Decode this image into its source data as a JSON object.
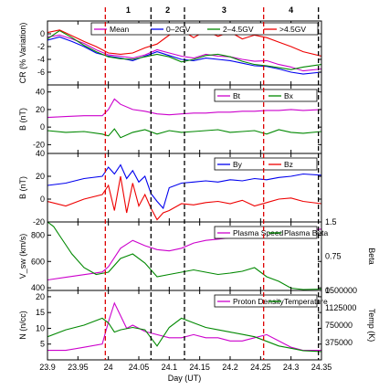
{
  "chart_data": {
    "type": "line",
    "xlabel": "Day (UT)",
    "xlim": [
      23.9,
      24.35
    ],
    "xticks": [
      "23.9",
      "23.95",
      "24",
      "24.05",
      "24.1",
      "24.15",
      "24.2",
      "24.25",
      "24.3",
      "24.35"
    ],
    "regions": [
      {
        "label": "1",
        "from": 23.995,
        "to": 24.07
      },
      {
        "label": "2",
        "from": 24.07,
        "to": 24.125
      },
      {
        "label": "3",
        "from": 24.125,
        "to": 24.255
      },
      {
        "label": "4",
        "from": 24.255,
        "to": 24.345
      }
    ],
    "markers": [
      {
        "x": 23.995,
        "color": "#dd0000"
      },
      {
        "x": 24.07,
        "color": "#000000"
      },
      {
        "x": 24.125,
        "color": "#000000"
      },
      {
        "x": 24.255,
        "color": "#dd0000"
      },
      {
        "x": 24.345,
        "color": "#000000"
      }
    ],
    "panels": [
      {
        "id": "cr",
        "ylabel": "CR (% Variation)",
        "ylim": [
          -8,
          2
        ],
        "yticks": [
          0,
          -2,
          -4,
          -6
        ],
        "legend": [
          "Mean",
          "0–2GV",
          "2–4.5GV",
          ">4.5GV"
        ],
        "series": [
          {
            "name": "Mean",
            "color": "#cc00cc",
            "x": [
              23.9,
              23.92,
              23.94,
              23.96,
              23.98,
              24.0,
              24.02,
              24.04,
              24.06,
              24.08,
              24.1,
              24.12,
              24.14,
              24.16,
              24.18,
              24.2,
              24.22,
              24.24,
              24.26,
              24.28,
              24.3,
              24.32,
              24.35
            ],
            "y": [
              -0.5,
              -0.2,
              -0.8,
              -1.5,
              -2.5,
              -3.3,
              -3.5,
              -3.8,
              -3.3,
              -2.5,
              -3.0,
              -3.5,
              -3.8,
              -3.2,
              -3.5,
              -3.6,
              -4.0,
              -4.3,
              -4.2,
              -4.8,
              -5.2,
              -5.8,
              -5.5
            ]
          },
          {
            "name": "0–2GV",
            "color": "#0000ee",
            "x": [
              23.9,
              23.92,
              23.94,
              23.96,
              23.98,
              24.0,
              24.02,
              24.04,
              24.06,
              24.08,
              24.1,
              24.12,
              24.14,
              24.16,
              24.18,
              24.2,
              24.22,
              24.24,
              24.26,
              24.28,
              24.3,
              24.32,
              24.35
            ],
            "y": [
              -1.0,
              -0.5,
              -1.2,
              -2.0,
              -3.0,
              -3.5,
              -3.8,
              -4.2,
              -3.5,
              -2.8,
              -3.4,
              -4.0,
              -4.2,
              -3.8,
              -4.0,
              -4.2,
              -4.6,
              -5.0,
              -5.1,
              -5.5,
              -6.0,
              -6.3,
              -6.0
            ]
          },
          {
            "name": "2–4.5GV",
            "color": "#008800",
            "x": [
              23.9,
              23.92,
              23.94,
              23.96,
              23.98,
              24.0,
              24.02,
              24.04,
              24.06,
              24.08,
              24.1,
              24.12,
              24.14,
              24.16,
              24.18,
              24.2,
              24.22,
              24.24,
              24.26,
              24.28,
              24.3,
              24.32,
              24.35
            ],
            "y": [
              -0.8,
              0.5,
              -0.6,
              -1.8,
              -2.8,
              -3.6,
              -3.9,
              -4.0,
              -3.6,
              -3.2,
              -3.6,
              -4.4,
              -4.0,
              -3.4,
              -3.2,
              -3.6,
              -4.3,
              -4.8,
              -5.0,
              -5.3,
              -5.6,
              -5.2,
              -4.8
            ]
          },
          {
            "name": ">4.5GV",
            "color": "#ee0000",
            "x": [
              23.9,
              23.92,
              23.94,
              23.96,
              23.98,
              24.0,
              24.02,
              24.04,
              24.06,
              24.08,
              24.1,
              24.12,
              24.14,
              24.16,
              24.18,
              24.2,
              24.22,
              24.24,
              24.26,
              24.28,
              24.3,
              24.32,
              24.35
            ],
            "y": [
              0.2,
              0.6,
              -0.3,
              -1.2,
              -2.0,
              -3.0,
              -3.2,
              -3.0,
              -2.2,
              -1.6,
              -0.2,
              0.6,
              -0.6,
              0.5,
              -0.4,
              0.3,
              -0.8,
              -0.2,
              -0.6,
              -1.3,
              -2.0,
              -2.8,
              -3.5
            ]
          }
        ]
      },
      {
        "id": "b",
        "ylabel": "B (nT)",
        "ylim": [
          -30,
          48
        ],
        "yticks": [
          40,
          20,
          0,
          -20
        ],
        "legend": [
          "Bt",
          "Bx"
        ],
        "series": [
          {
            "name": "Bt",
            "color": "#cc00cc",
            "x": [
              23.9,
              23.93,
              23.96,
              23.99,
              24.0,
              24.01,
              24.02,
              24.04,
              24.06,
              24.08,
              24.1,
              24.12,
              24.14,
              24.16,
              24.18,
              24.2,
              24.22,
              24.24,
              24.26,
              24.28,
              24.3,
              24.32,
              24.35
            ],
            "y": [
              11,
              12,
              13,
              13,
              20,
              32,
              26,
              20,
              18,
              15,
              14,
              15,
              16,
              16,
              17,
              17,
              18,
              18,
              19,
              19,
              20,
              19,
              20
            ]
          },
          {
            "name": "Bx",
            "color": "#008800",
            "x": [
              23.9,
              23.93,
              23.96,
              23.99,
              24.0,
              24.01,
              24.02,
              24.04,
              24.06,
              24.08,
              24.1,
              24.12,
              24.14,
              24.16,
              24.18,
              24.2,
              24.22,
              24.24,
              24.26,
              24.28,
              24.3,
              24.32,
              24.35
            ],
            "y": [
              -4,
              -6,
              -5,
              -8,
              -10,
              -2,
              -12,
              -6,
              -3,
              -8,
              -4,
              -6,
              -5,
              -4,
              -3,
              -6,
              -5,
              -4,
              -8,
              -3,
              -6,
              -7,
              -5
            ]
          }
        ]
      },
      {
        "id": "by",
        "ylabel": "B (nT)",
        "ylim": [
          -20,
          40
        ],
        "yticks": [
          40,
          20,
          0,
          -20
        ],
        "legend": [
          "By",
          "Bz"
        ],
        "series": [
          {
            "name": "By",
            "color": "#0000ee",
            "x": [
              23.9,
              23.93,
              23.96,
              23.99,
              24.0,
              24.01,
              24.02,
              24.03,
              24.04,
              24.05,
              24.06,
              24.07,
              24.08,
              24.09,
              24.1,
              24.12,
              24.14,
              24.16,
              24.18,
              24.2,
              24.22,
              24.24,
              24.26,
              24.28,
              24.3,
              24.32,
              24.35
            ],
            "y": [
              12,
              14,
              18,
              20,
              28,
              22,
              30,
              18,
              25,
              15,
              20,
              5,
              -2,
              -8,
              10,
              14,
              15,
              16,
              15,
              17,
              16,
              18,
              17,
              19,
              20,
              22,
              21
            ]
          },
          {
            "name": "Bz",
            "color": "#ee0000",
            "x": [
              23.9,
              23.93,
              23.96,
              23.99,
              24.0,
              24.01,
              24.02,
              24.03,
              24.04,
              24.05,
              24.06,
              24.07,
              24.08,
              24.09,
              24.1,
              24.12,
              24.14,
              24.16,
              24.18,
              24.2,
              24.22,
              24.24,
              24.26,
              24.28,
              24.3,
              24.32,
              24.35
            ],
            "y": [
              -2,
              -6,
              0,
              4,
              12,
              -10,
              20,
              -12,
              14,
              -6,
              4,
              -8,
              -18,
              -12,
              -10,
              -4,
              -5,
              -3,
              -2,
              -4,
              -1,
              -6,
              -3,
              0,
              1,
              -2,
              -4
            ]
          }
        ]
      },
      {
        "id": "vsw",
        "ylabel": "V_sw (km/s)",
        "ylim": [
          380,
          900
        ],
        "yticks": [
          800,
          600,
          400
        ],
        "right_ylabel": "Beta",
        "right_ylim": [
          0,
          1.5
        ],
        "right_yticks": [
          "1.5",
          "0.75",
          "0"
        ],
        "legend": [
          "Plasma Speed",
          "Plasma Beta"
        ],
        "series": [
          {
            "name": "Plasma Speed",
            "color": "#cc00cc",
            "x": [
              23.9,
              23.93,
              23.96,
              23.99,
              24.0,
              24.02,
              24.04,
              24.06,
              24.08,
              24.1,
              24.12,
              24.14,
              24.16,
              24.18,
              24.2,
              24.22,
              24.24,
              24.26,
              24.28,
              24.3,
              24.32,
              24.35
            ],
            "y": [
              460,
              480,
              500,
              520,
              560,
              700,
              760,
              720,
              690,
              680,
              700,
              740,
              760,
              770,
              780,
              790,
              800,
              810,
              820,
              830,
              840,
              845
            ]
          },
          {
            "name": "Plasma Beta",
            "color": "#008800",
            "axis": "right",
            "x": [
              23.9,
              23.91,
              23.92,
              23.93,
              23.94,
              23.96,
              23.98,
              24.0,
              24.02,
              24.04,
              24.06,
              24.08,
              24.1,
              24.12,
              24.14,
              24.16,
              24.18,
              24.2,
              24.22,
              24.24,
              24.26,
              24.28,
              24.3,
              24.32,
              24.35
            ],
            "y": [
              1.5,
              1.4,
              1.2,
              1.0,
              0.8,
              0.5,
              0.35,
              0.4,
              0.7,
              0.8,
              0.6,
              0.3,
              0.35,
              0.4,
              0.45,
              0.4,
              0.35,
              0.38,
              0.42,
              0.5,
              0.3,
              0.2,
              0.05,
              0.02,
              0.03
            ]
          }
        ]
      },
      {
        "id": "np",
        "ylabel": "N (n/cc)",
        "ylim": [
          0,
          22
        ],
        "yticks": [
          20,
          15,
          10,
          5
        ],
        "right_ylabel": "Temp (K)",
        "right_ylim": [
          0,
          1500000
        ],
        "right_yticks": [
          "1500000",
          "1125000",
          "750000",
          "375000"
        ],
        "legend": [
          "Proton Density",
          "Temperature"
        ],
        "series": [
          {
            "name": "Proton Density",
            "color": "#cc00cc",
            "x": [
              23.9,
              23.93,
              23.96,
              23.99,
              24.0,
              24.01,
              24.02,
              24.03,
              24.04,
              24.06,
              24.08,
              24.1,
              24.12,
              24.14,
              24.16,
              24.18,
              24.2,
              24.22,
              24.24,
              24.26,
              24.28,
              24.3,
              24.32,
              24.35
            ],
            "y": [
              3,
              3,
              4,
              5,
              12,
              18,
              14,
              10,
              11,
              9,
              8,
              7,
              7,
              8,
              7,
              7,
              6,
              6,
              7,
              8,
              6,
              4,
              3,
              3
            ]
          },
          {
            "name": "Temperature",
            "color": "#008800",
            "axis": "right",
            "x": [
              23.9,
              23.93,
              23.96,
              23.99,
              24.0,
              24.01,
              24.02,
              24.04,
              24.06,
              24.08,
              24.1,
              24.12,
              24.14,
              24.16,
              24.18,
              24.2,
              24.22,
              24.24,
              24.26,
              24.28,
              24.3,
              24.32,
              24.35
            ],
            "y": [
              500000,
              650000,
              750000,
              900000,
              800000,
              600000,
              650000,
              700000,
              650000,
              300000,
              700000,
              900000,
              800000,
              700000,
              650000,
              600000,
              550000,
              500000,
              400000,
              300000,
              250000,
              200000,
              180000
            ]
          }
        ]
      }
    ]
  }
}
